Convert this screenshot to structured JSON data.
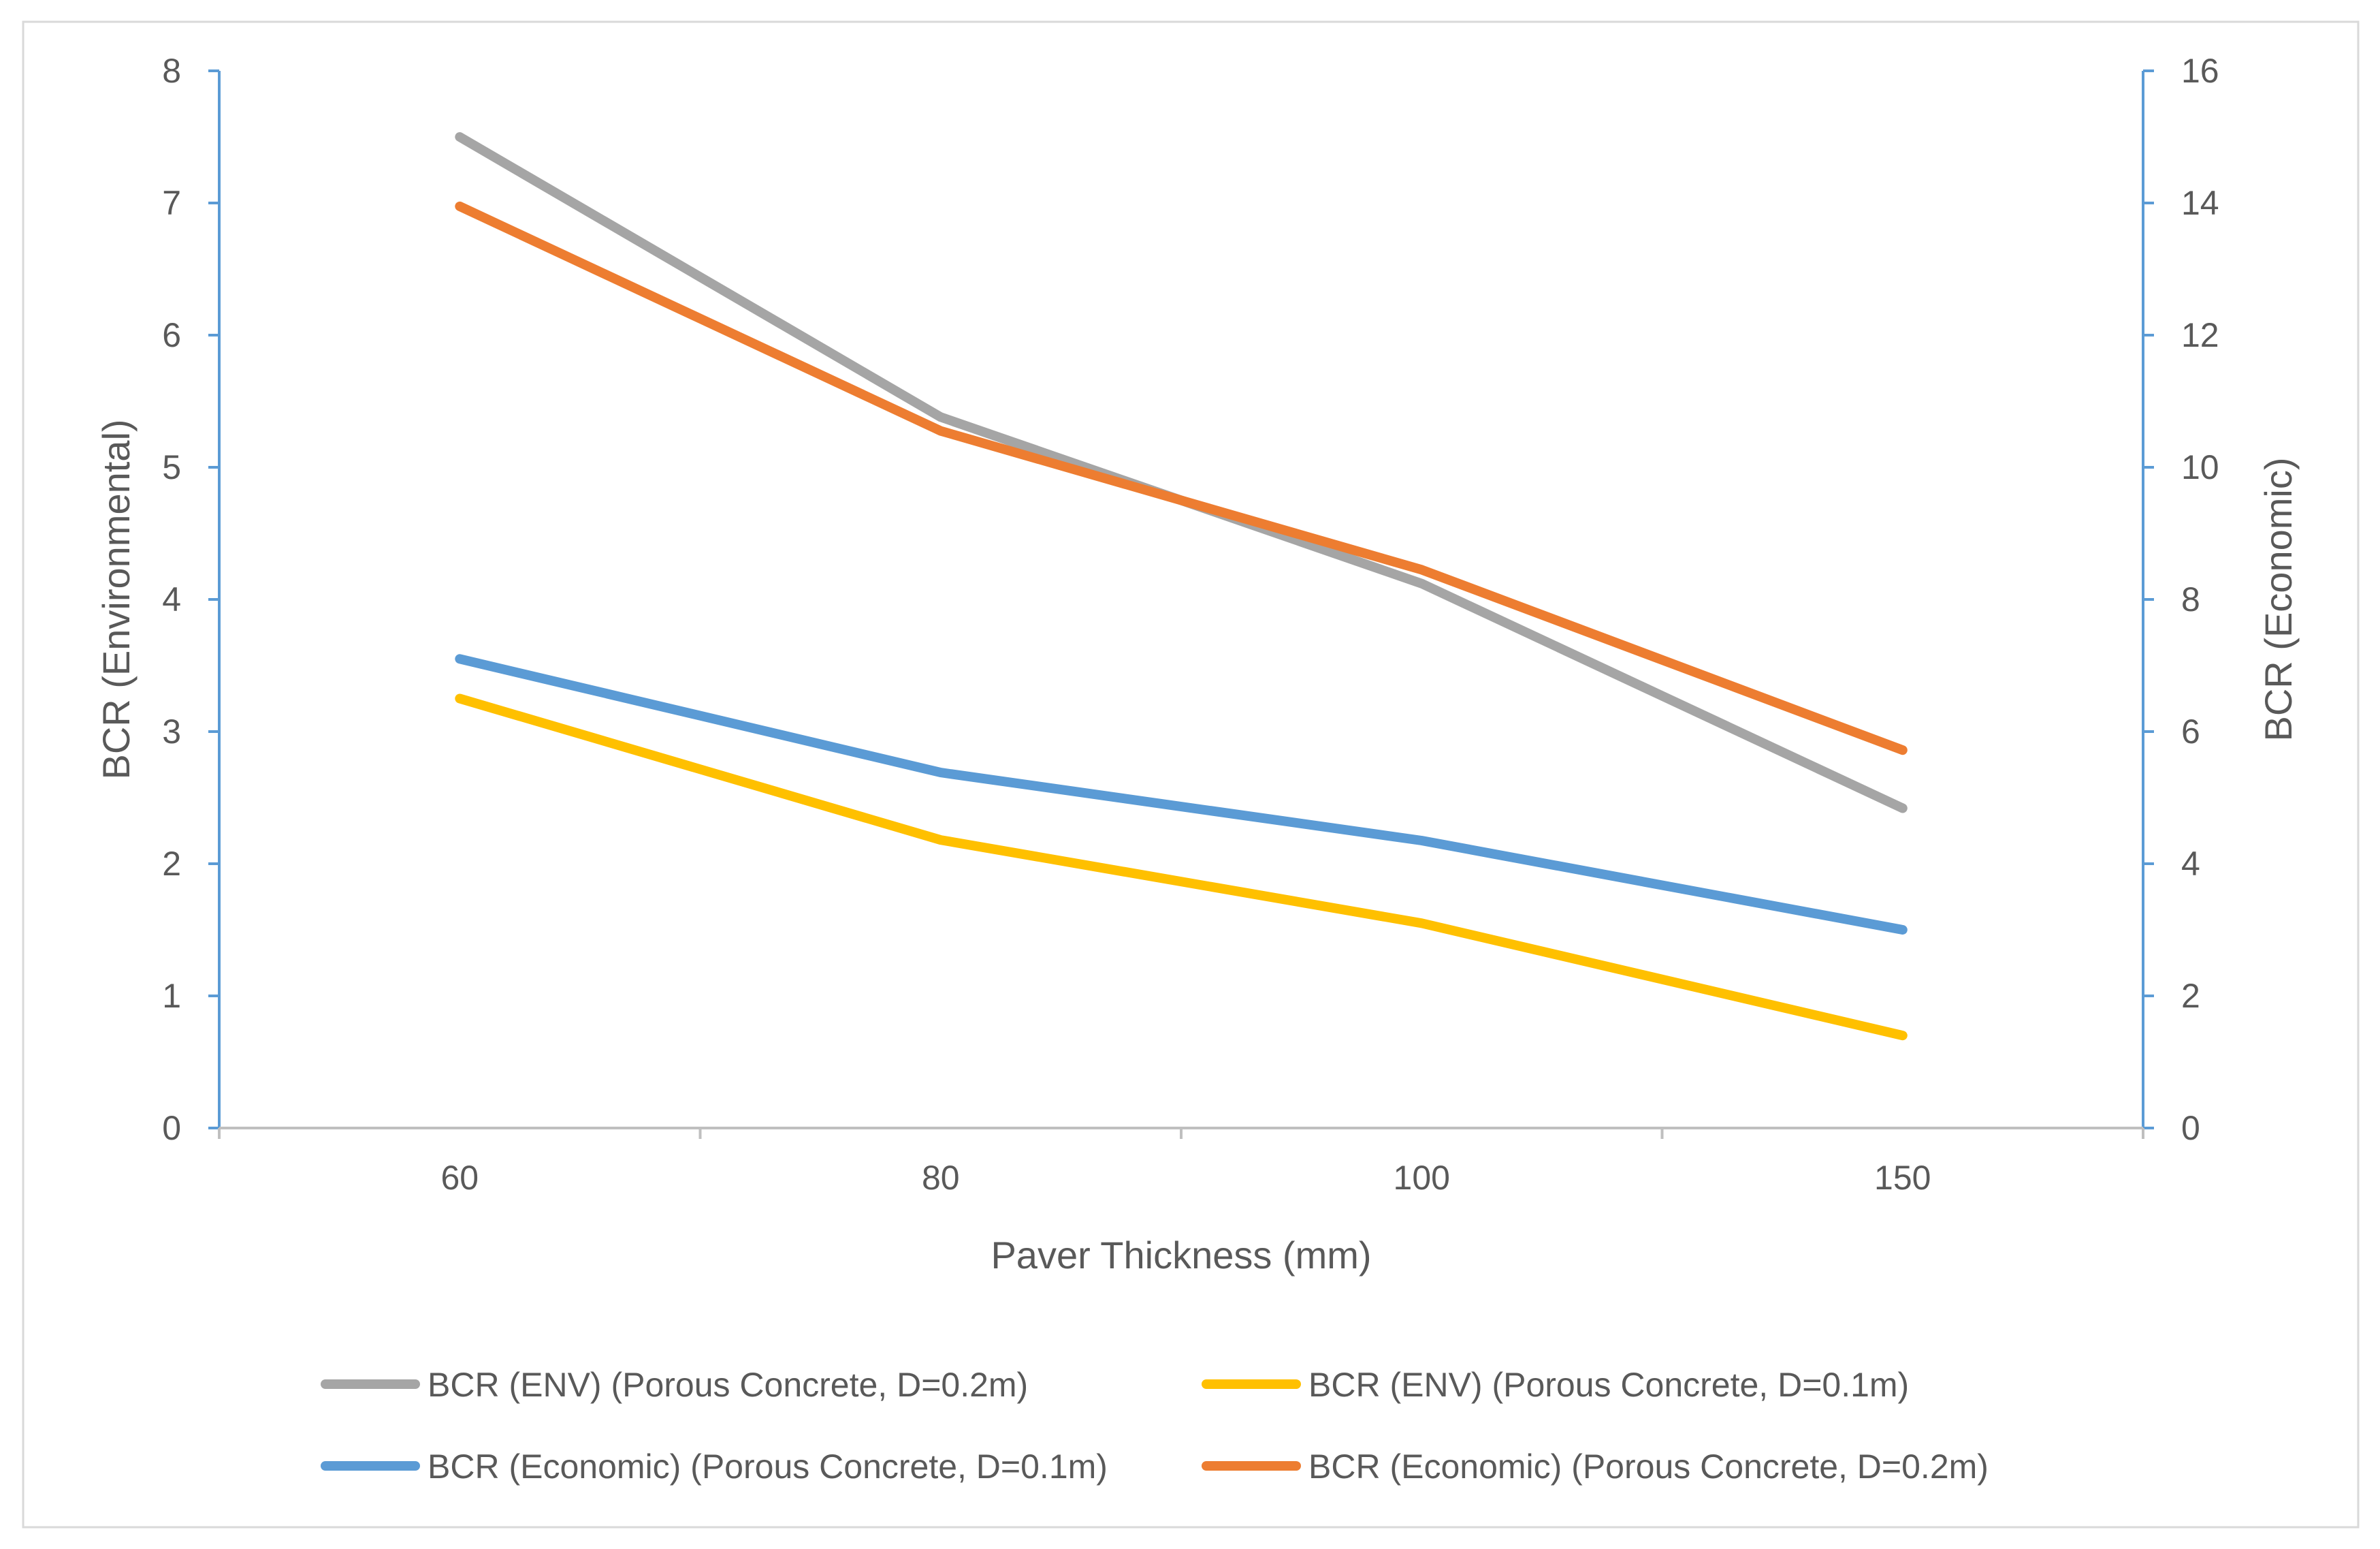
{
  "chart_data": {
    "type": "line",
    "title": "",
    "categories": [
      "60",
      "80",
      "100",
      "150"
    ],
    "xlabel": "Paver Thickness (mm)",
    "ylabel": "BCR (Environmental)",
    "y2label": "BCR (Economic)",
    "ylim": [
      0,
      8
    ],
    "y2lim": [
      0,
      16
    ],
    "yticks": [
      "0",
      "1",
      "2",
      "3",
      "4",
      "5",
      "6",
      "7",
      "8"
    ],
    "y2ticks": [
      "0",
      "2",
      "4",
      "6",
      "8",
      "10",
      "12",
      "14",
      "16"
    ],
    "grid": false,
    "legend_position": "bottom",
    "series": [
      {
        "name": "BCR (ENV) (Porous Concrete, D=0.2m)",
        "axis": "left",
        "color": "#a5a5a5",
        "values": [
          7.5,
          5.38,
          4.12,
          2.42
        ]
      },
      {
        "name": "BCR (ENV) (Porous Concrete, D=0.1m)",
        "axis": "left",
        "color": "#ffc000",
        "values": [
          3.25,
          2.18,
          1.55,
          0.7
        ]
      },
      {
        "name": "BCR (Economic) (Porous Concrete, D=0.1m)",
        "axis": "right",
        "color": "#5b9bd5",
        "values": [
          7.1,
          5.38,
          4.35,
          3.0
        ]
      },
      {
        "name": "BCR (Economic) (Porous Concrete, D=0.2m)",
        "axis": "right",
        "color": "#ed7d31",
        "values": [
          13.95,
          10.55,
          8.45,
          5.72
        ]
      }
    ]
  }
}
